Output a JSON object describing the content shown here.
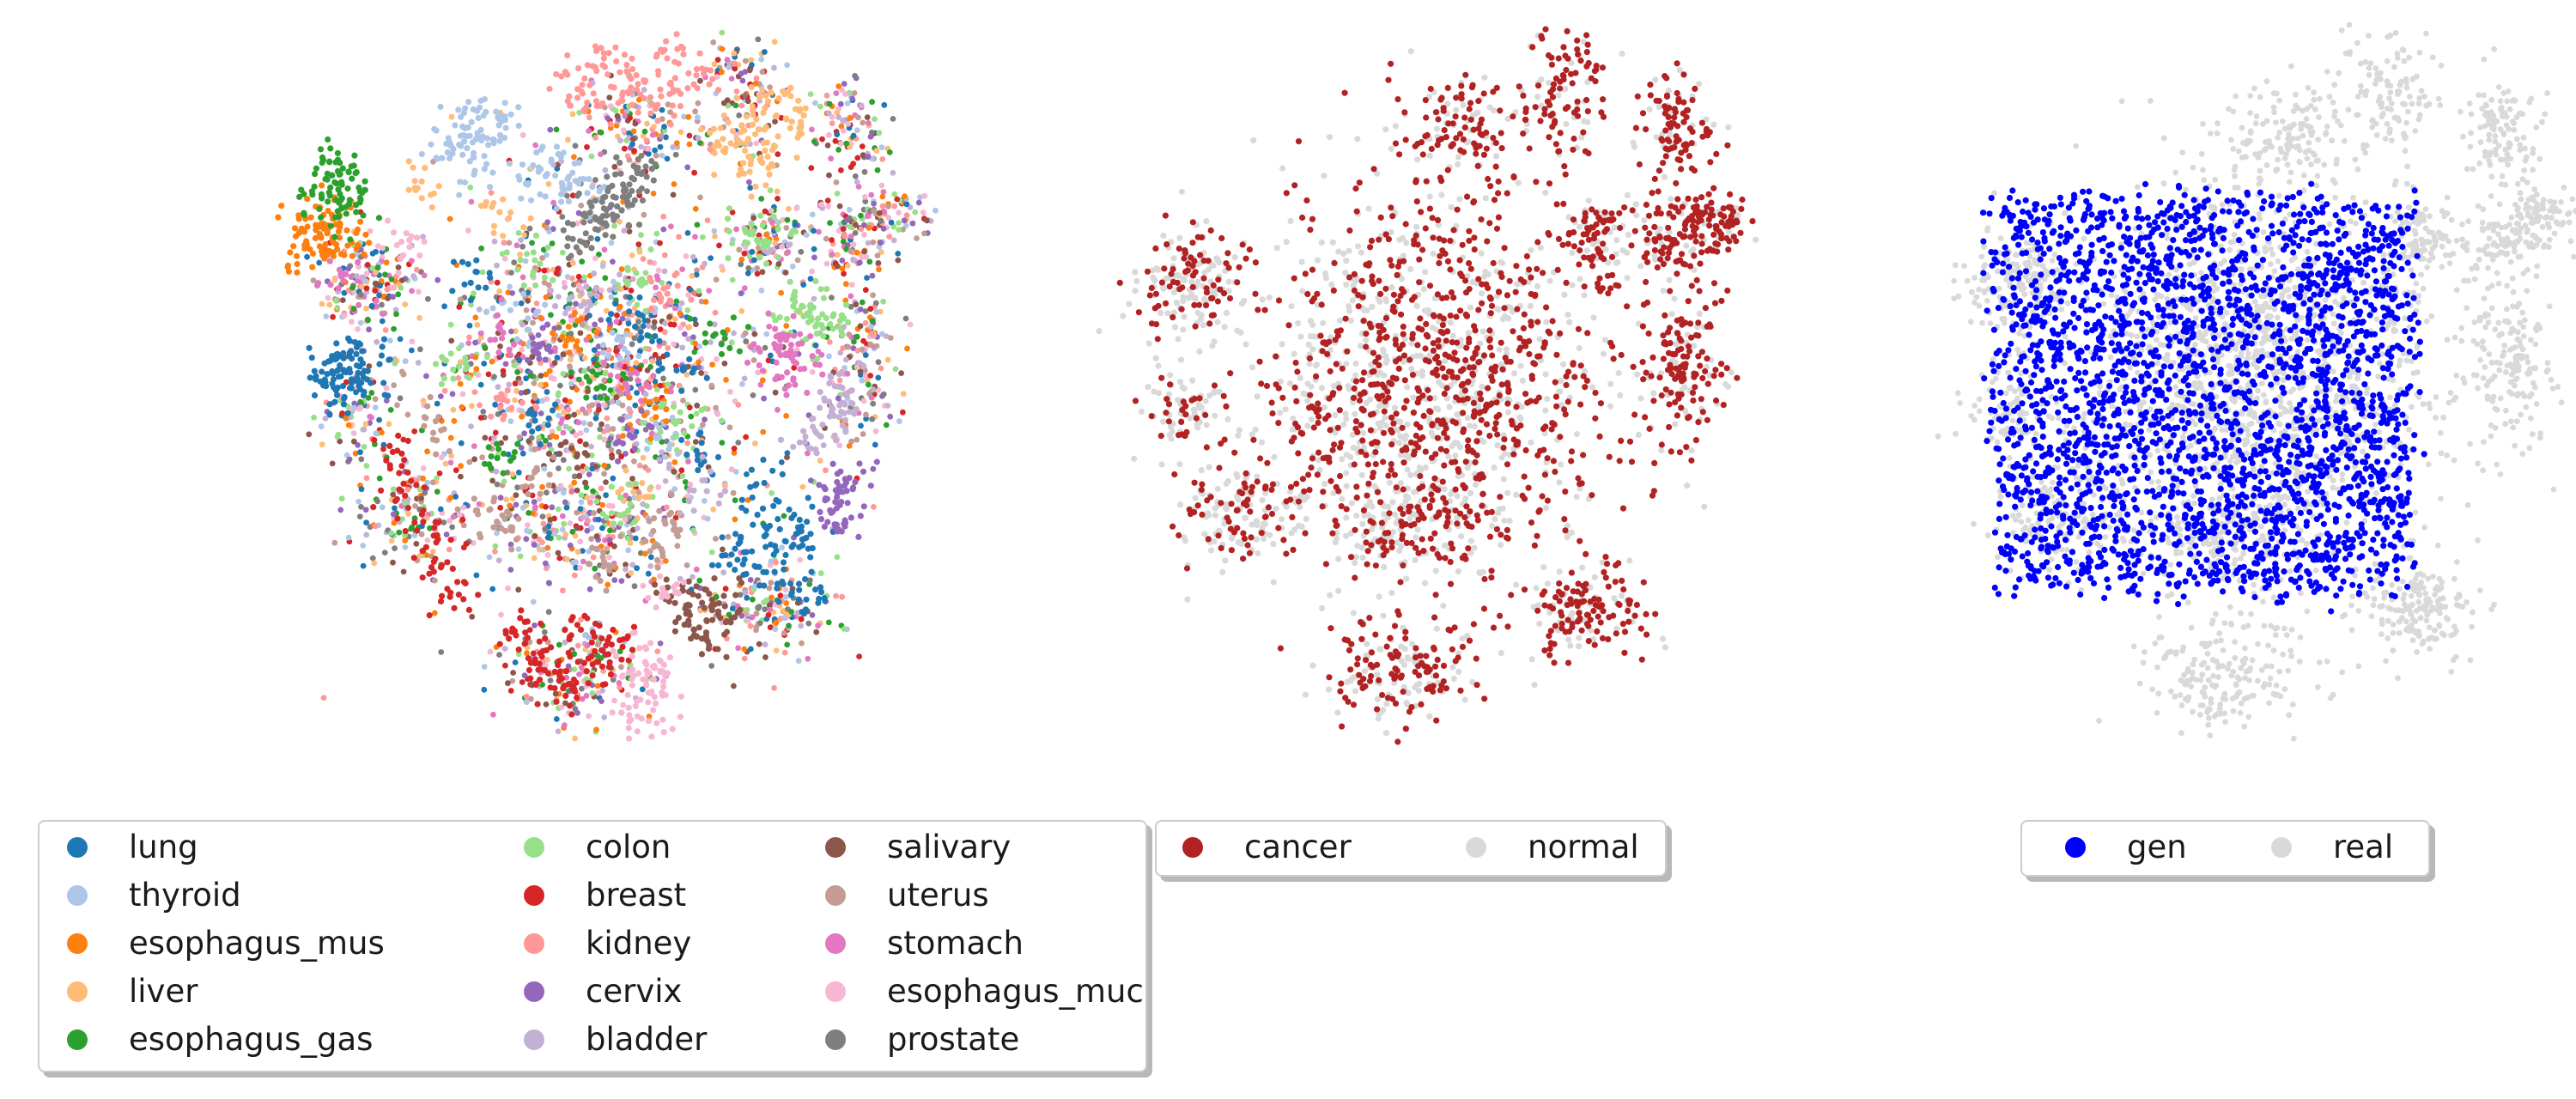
{
  "chart_data": [
    {
      "type": "scatter",
      "title": "",
      "xlabel": "",
      "ylabel": "",
      "axes_visible": false,
      "grid": false,
      "legend_placement": "below",
      "legend_columns": 3,
      "series": [
        {
          "name": "lung",
          "color": "#1f77b4",
          "points": [
            [
              -0.78,
              0.04
            ],
            [
              -0.82,
              0.08
            ],
            [
              -0.74,
              0.0
            ],
            [
              -0.8,
              -0.02
            ],
            [
              -0.76,
              0.06
            ],
            [
              -0.84,
              0.02
            ],
            [
              -0.72,
              0.1
            ],
            [
              0.45,
              -0.42
            ],
            [
              0.52,
              -0.48
            ],
            [
              0.58,
              -0.36
            ],
            [
              0.48,
              -0.3
            ],
            [
              0.62,
              -0.44
            ],
            [
              0.4,
              -0.5
            ],
            [
              0.55,
              -0.55
            ],
            [
              0.1,
              0.2
            ],
            [
              -0.2,
              -0.1
            ],
            [
              0.25,
              0.05
            ],
            [
              -0.4,
              0.3
            ],
            [
              0.3,
              -0.2
            ],
            [
              0.65,
              -0.6
            ]
          ]
        },
        {
          "name": "thyroid",
          "color": "#aec7e8",
          "points": [
            [
              -0.45,
              0.72
            ],
            [
              -0.4,
              0.78
            ],
            [
              -0.35,
              0.7
            ],
            [
              -0.48,
              0.66
            ],
            [
              -0.3,
              0.75
            ],
            [
              -0.2,
              0.6
            ],
            [
              -0.1,
              0.56
            ],
            [
              -0.15,
              0.64
            ],
            [
              -0.05,
              0.58
            ],
            [
              -0.38,
              0.62
            ],
            [
              0.05,
              0.1
            ],
            [
              -0.25,
              0.2
            ],
            [
              0.2,
              -0.15
            ]
          ]
        },
        {
          "name": "esophagus_mus",
          "color": "#ff7f0e",
          "points": [
            [
              -0.88,
              0.42
            ],
            [
              -0.84,
              0.46
            ],
            [
              -0.9,
              0.38
            ],
            [
              -0.8,
              0.4
            ],
            [
              -0.86,
              0.5
            ],
            [
              -0.78,
              0.44
            ],
            [
              -0.92,
              0.44
            ],
            [
              -0.1,
              0.15
            ],
            [
              0.15,
              -0.05
            ]
          ]
        },
        {
          "name": "liver",
          "color": "#ffbb78",
          "points": [
            [
              0.42,
              0.72
            ],
            [
              0.48,
              0.78
            ],
            [
              0.52,
              0.68
            ],
            [
              0.38,
              0.66
            ],
            [
              0.55,
              0.8
            ],
            [
              0.45,
              0.62
            ],
            [
              0.6,
              0.74
            ],
            [
              -0.3,
              0.5
            ],
            [
              0.1,
              -0.3
            ],
            [
              -0.55,
              0.55
            ]
          ]
        },
        {
          "name": "esophagus_gas",
          "color": "#2ca02c",
          "points": [
            [
              -0.84,
              0.56
            ],
            [
              -0.8,
              0.6
            ],
            [
              -0.86,
              0.52
            ],
            [
              -0.78,
              0.54
            ],
            [
              -0.82,
              0.64
            ],
            [
              -0.76,
              0.5
            ],
            [
              0.0,
              0.0
            ],
            [
              -0.3,
              -0.2
            ],
            [
              0.35,
              0.15
            ]
          ]
        },
        {
          "name": "colon",
          "color": "#98df8a",
          "points": [
            [
              0.6,
              0.2
            ],
            [
              0.66,
              0.16
            ],
            [
              0.62,
              0.24
            ],
            [
              0.7,
              0.18
            ],
            [
              0.45,
              0.44
            ],
            [
              0.5,
              0.4
            ],
            [
              -0.2,
              0.35
            ],
            [
              0.1,
              0.3
            ],
            [
              -0.45,
              0.05
            ],
            [
              0.25,
              -0.1
            ],
            [
              0.05,
              -0.35
            ]
          ]
        },
        {
          "name": "breast",
          "color": "#d62728",
          "points": [
            [
              -0.2,
              -0.78
            ],
            [
              -0.1,
              -0.82
            ],
            [
              -0.15,
              -0.74
            ],
            [
              0.0,
              -0.8
            ],
            [
              -0.05,
              -0.7
            ],
            [
              -0.25,
              -0.7
            ],
            [
              0.05,
              -0.74
            ],
            [
              -0.12,
              -0.86
            ],
            [
              -0.55,
              -0.4
            ],
            [
              -0.6,
              -0.3
            ],
            [
              -0.5,
              -0.5
            ],
            [
              -0.65,
              -0.2
            ],
            [
              -0.45,
              -0.6
            ]
          ]
        },
        {
          "name": "kidney",
          "color": "#ff9896",
          "points": [
            [
              -0.1,
              0.86
            ],
            [
              0.0,
              0.92
            ],
            [
              0.1,
              0.88
            ],
            [
              0.2,
              0.94
            ],
            [
              0.25,
              0.84
            ],
            [
              0.15,
              0.8
            ],
            [
              0.3,
              0.9
            ],
            [
              -0.05,
              0.8
            ],
            [
              0.05,
              0.84
            ],
            [
              -0.3,
              -0.05
            ],
            [
              0.2,
              0.25
            ]
          ]
        },
        {
          "name": "cervix",
          "color": "#9467bd",
          "points": [
            [
              0.72,
              -0.3
            ],
            [
              0.76,
              -0.36
            ],
            [
              0.7,
              -0.4
            ],
            [
              0.74,
              -0.26
            ],
            [
              0.1,
              -0.15
            ],
            [
              -0.2,
              0.1
            ]
          ]
        },
        {
          "name": "bladder",
          "color": "#c5b0d5",
          "points": [
            [
              0.7,
              -0.1
            ],
            [
              0.74,
              -0.06
            ],
            [
              0.66,
              -0.14
            ],
            [
              0.72,
              -0.02
            ],
            [
              -0.05,
              0.25
            ],
            [
              0.3,
              -0.3
            ]
          ]
        },
        {
          "name": "salivary",
          "color": "#8c564b",
          "points": [
            [
              0.3,
              -0.6
            ],
            [
              0.35,
              -0.66
            ],
            [
              0.28,
              -0.68
            ],
            [
              0.4,
              -0.62
            ],
            [
              0.33,
              -0.72
            ],
            [
              0.25,
              -0.58
            ],
            [
              -0.1,
              -0.2
            ]
          ]
        },
        {
          "name": "uterus",
          "color": "#c49c94",
          "points": [
            [
              -0.35,
              -0.35
            ],
            [
              -0.3,
              -0.4
            ],
            [
              0.15,
              -0.45
            ],
            [
              0.2,
              -0.4
            ],
            [
              -0.5,
              -0.1
            ],
            [
              0.0,
              -0.5
            ],
            [
              -0.2,
              -0.25
            ]
          ]
        },
        {
          "name": "stomach",
          "color": "#e377c2",
          "points": [
            [
              0.55,
              0.06
            ],
            [
              0.6,
              0.02
            ],
            [
              0.52,
              0.12
            ],
            [
              0.58,
              0.14
            ],
            [
              0.1,
              0.0
            ],
            [
              -0.3,
              0.15
            ],
            [
              -0.8,
              0.3
            ]
          ]
        },
        {
          "name": "esophagus_muc",
          "color": "#f7b6d2",
          "points": [
            [
              0.14,
              -0.84
            ],
            [
              0.16,
              -0.9
            ],
            [
              0.12,
              -0.94
            ],
            [
              0.18,
              -0.8
            ],
            [
              0.1,
              -0.76
            ],
            [
              -0.6,
              0.4
            ],
            [
              0.2,
              -0.6
            ]
          ]
        },
        {
          "name": "prostate",
          "color": "#7f7f7f",
          "points": [
            [
              0.05,
              0.55
            ],
            [
              0.1,
              0.58
            ],
            [
              0.02,
              0.5
            ],
            [
              0.12,
              0.62
            ],
            [
              -0.02,
              0.46
            ],
            [
              0.08,
              0.52
            ],
            [
              -0.06,
              0.42
            ]
          ]
        }
      ]
    },
    {
      "type": "scatter",
      "title": "",
      "xlabel": "",
      "ylabel": "",
      "axes_visible": false,
      "grid": false,
      "legend_placement": "below",
      "legend_columns": 2,
      "series": [
        {
          "name": "cancer",
          "color": "#b22222"
        },
        {
          "name": "normal",
          "color": "#d9d9d9"
        }
      ]
    },
    {
      "type": "scatter",
      "title": "",
      "xlabel": "",
      "ylabel": "",
      "axes_visible": false,
      "grid": false,
      "legend_placement": "below",
      "legend_columns": 2,
      "series": [
        {
          "name": "gen",
          "color": "#0000ff"
        },
        {
          "name": "real",
          "color": "#d9d9d9"
        }
      ]
    }
  ]
}
